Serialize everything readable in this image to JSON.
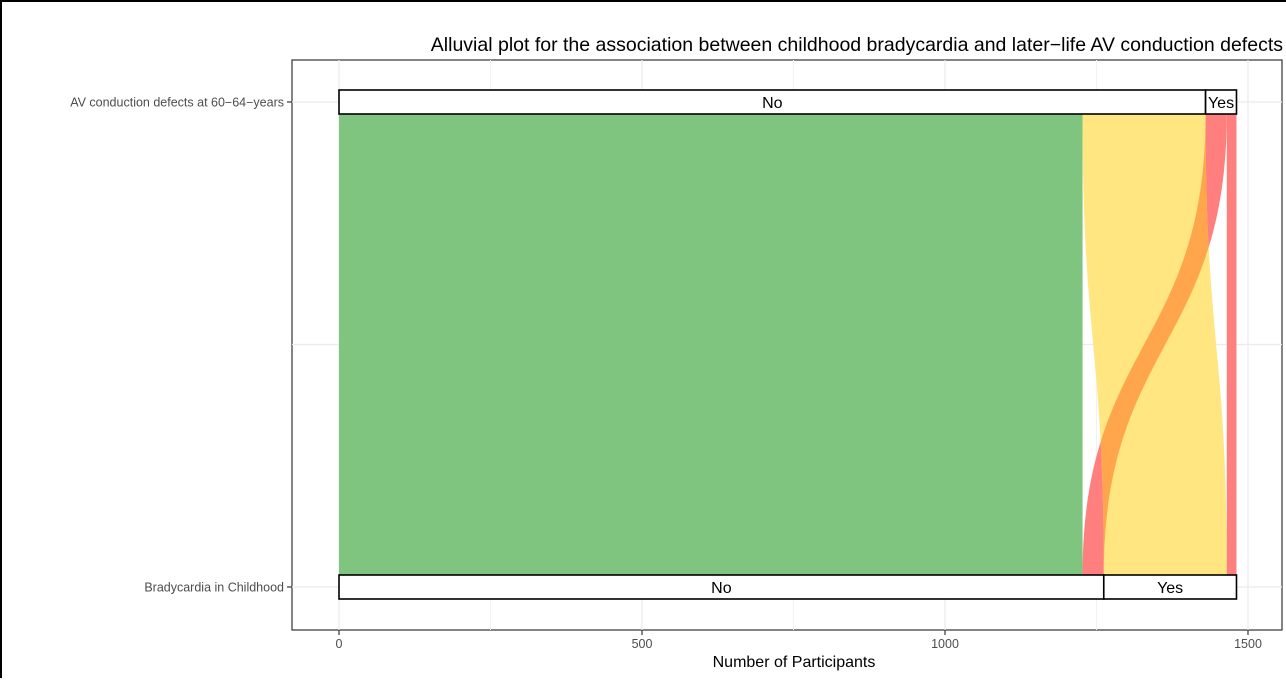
{
  "chart_data": {
    "type": "alluvial",
    "title": "Alluvial plot for the association between childhood bradycardia and later−life AV conduction defects",
    "xlabel": "Number of Participants",
    "ylabel": "",
    "xlim": [
      -75,
      1525
    ],
    "x_ticks": [
      0,
      500,
      1000,
      1500
    ],
    "x_tick_labels": [
      "0",
      "500",
      "1000",
      "1500"
    ],
    "grid": true,
    "axes": [
      {
        "name": "Bradycardia in Childhood",
        "strata": [
          {
            "label": "No",
            "start": 0,
            "end": 1262
          },
          {
            "label": "Yes",
            "start": 1262,
            "end": 1481
          }
        ]
      },
      {
        "name": "AV conduction defects at 60−64−years",
        "strata": [
          {
            "label": "No",
            "start": 0,
            "end": 1430
          },
          {
            "label": "Yes",
            "start": 1430,
            "end": 1481
          }
        ]
      }
    ],
    "flows": [
      {
        "from": "No",
        "to": "No",
        "value": 1227,
        "color": "#7FC47F"
      },
      {
        "from": "No",
        "to": "Yes",
        "value": 35,
        "color": "#FF7F7F"
      },
      {
        "from": "Yes",
        "to": "No",
        "value": 203,
        "color": "#FFE680"
      },
      {
        "from": "Yes",
        "to": "Yes",
        "value": 16,
        "color": "#FF7F7F"
      }
    ],
    "overlap_color": "#FFA64D"
  }
}
